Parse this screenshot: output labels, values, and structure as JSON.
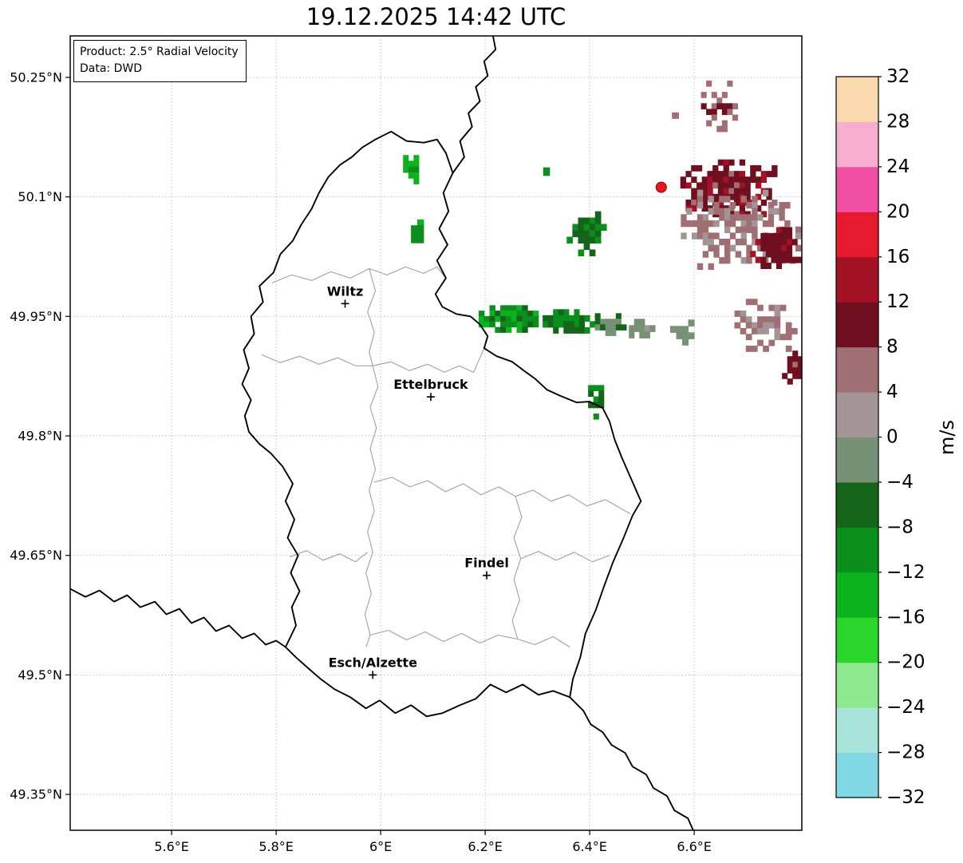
{
  "title": "19.12.2025 14:42 UTC",
  "info_box": {
    "product": "Product: 2.5° Radial Velocity",
    "source": "Data: DWD"
  },
  "axes": {
    "lon_range": [
      5.406,
      6.806
    ],
    "lat_range": [
      49.305,
      50.302
    ],
    "lon_ticks": [
      {
        "value": 5.6,
        "label": "5.6°E"
      },
      {
        "value": 5.8,
        "label": "5.8°E"
      },
      {
        "value": 6.0,
        "label": "6°E"
      },
      {
        "value": 6.2,
        "label": "6.2°E"
      },
      {
        "value": 6.4,
        "label": "6.4°E"
      },
      {
        "value": 6.6,
        "label": "6.6°E"
      }
    ],
    "lat_ticks": [
      {
        "value": 50.25,
        "label": "50.25°N"
      },
      {
        "value": 50.1,
        "label": "50.1°N"
      },
      {
        "value": 49.95,
        "label": "49.95°N"
      },
      {
        "value": 49.8,
        "label": "49.8°N"
      },
      {
        "value": 49.65,
        "label": "49.65°N"
      },
      {
        "value": 49.5,
        "label": "49.5°N"
      },
      {
        "value": 49.35,
        "label": "49.35°N"
      }
    ],
    "grid_color": "#b9b9b9"
  },
  "colorbar": {
    "unit": "m/s",
    "vmin": -32,
    "vmax": 32,
    "step": 4,
    "tick_values": [
      32,
      28,
      24,
      20,
      16,
      12,
      8,
      4,
      0,
      -4,
      -8,
      -12,
      -16,
      -20,
      -24,
      -28,
      -32
    ],
    "tick_labels": [
      "32",
      "28",
      "24",
      "20",
      "16",
      "12",
      "8",
      "4",
      "0",
      "−4",
      "−8",
      "−12",
      "−16",
      "−20",
      "−24",
      "−28",
      "−32"
    ],
    "colors_low_to_high": [
      "#7fd8e3",
      "#a8e4da",
      "#8de98d",
      "#2bd62b",
      "#0cb31f",
      "#0a8f1d",
      "#14641a",
      "#779176",
      "#a39597",
      "#9f6f74",
      "#6f0f1f",
      "#a31225",
      "#e61a2c",
      "#f04fa3",
      "#f7adcd",
      "#fbd9ae"
    ]
  },
  "map": {
    "cities": [
      {
        "name": "Wiltz",
        "lon": 5.932,
        "lat": 49.966
      },
      {
        "name": "Ettelbruck",
        "lon": 6.096,
        "lat": 49.849
      },
      {
        "name": "Findel",
        "lon": 6.203,
        "lat": 49.625
      },
      {
        "name": "Esch/Alzette",
        "lon": 5.985,
        "lat": 49.5
      }
    ],
    "radar_site": {
      "lon": 6.537,
      "lat": 50.112,
      "color": "#e31a1c"
    },
    "borders": {
      "country": [
        [
          6.02,
          50.182
        ],
        [
          6.05,
          50.17
        ],
        [
          6.083,
          50.168
        ],
        [
          6.108,
          50.172
        ],
        [
          6.125,
          50.155
        ],
        [
          6.138,
          50.13
        ],
        [
          6.12,
          50.105
        ],
        [
          6.13,
          50.082
        ],
        [
          6.112,
          50.06
        ],
        [
          6.128,
          50.04
        ],
        [
          6.108,
          50.02
        ],
        [
          6.125,
          49.998
        ],
        [
          6.105,
          49.978
        ],
        [
          6.118,
          49.962
        ],
        [
          6.145,
          49.953
        ],
        [
          6.172,
          49.95
        ],
        [
          6.19,
          49.94
        ],
        [
          6.205,
          49.925
        ],
        [
          6.198,
          49.91
        ],
        [
          6.222,
          49.9
        ],
        [
          6.252,
          49.893
        ],
        [
          6.278,
          49.88
        ],
        [
          6.295,
          49.872
        ],
        [
          6.318,
          49.858
        ],
        [
          6.345,
          49.85
        ],
        [
          6.375,
          49.842
        ],
        [
          6.4,
          49.843
        ],
        [
          6.425,
          49.835
        ],
        [
          6.438,
          49.818
        ],
        [
          6.448,
          49.795
        ],
        [
          6.462,
          49.772
        ],
        [
          6.478,
          49.748
        ],
        [
          6.498,
          49.718
        ],
        [
          6.482,
          49.7
        ],
        [
          6.465,
          49.672
        ],
        [
          6.445,
          49.642
        ],
        [
          6.428,
          49.612
        ],
        [
          6.412,
          49.582
        ],
        [
          6.392,
          49.552
        ],
        [
          6.382,
          49.522
        ],
        [
          6.368,
          49.495
        ],
        [
          6.362,
          49.472
        ],
        [
          6.33,
          49.48
        ],
        [
          6.302,
          49.475
        ],
        [
          6.272,
          49.488
        ],
        [
          6.24,
          49.478
        ],
        [
          6.21,
          49.488
        ],
        [
          6.182,
          49.47
        ],
        [
          6.152,
          49.462
        ],
        [
          6.118,
          49.452
        ],
        [
          6.088,
          49.448
        ],
        [
          6.058,
          49.462
        ],
        [
          6.028,
          49.452
        ],
        [
          5.998,
          49.468
        ],
        [
          5.972,
          49.458
        ],
        [
          5.942,
          49.472
        ],
        [
          5.912,
          49.482
        ],
        [
          5.885,
          49.495
        ],
        [
          5.862,
          49.508
        ],
        [
          5.838,
          49.522
        ],
        [
          5.818,
          49.535
        ],
        [
          5.838,
          49.562
        ],
        [
          5.83,
          49.585
        ],
        [
          5.845,
          49.605
        ],
        [
          5.828,
          49.628
        ],
        [
          5.842,
          49.65
        ],
        [
          5.822,
          49.672
        ],
        [
          5.835,
          49.695
        ],
        [
          5.818,
          49.718
        ],
        [
          5.832,
          49.74
        ],
        [
          5.812,
          49.762
        ],
        [
          5.79,
          49.778
        ],
        [
          5.768,
          49.79
        ],
        [
          5.748,
          49.805
        ],
        [
          5.74,
          49.825
        ],
        [
          5.752,
          49.845
        ],
        [
          5.735,
          49.865
        ],
        [
          5.748,
          49.885
        ],
        [
          5.738,
          49.908
        ],
        [
          5.758,
          49.928
        ],
        [
          5.752,
          49.95
        ],
        [
          5.775,
          49.968
        ],
        [
          5.768,
          49.988
        ],
        [
          5.795,
          50.005
        ],
        [
          5.808,
          50.028
        ],
        [
          5.832,
          50.045
        ],
        [
          5.848,
          50.065
        ],
        [
          5.868,
          50.085
        ],
        [
          5.882,
          50.105
        ],
        [
          5.9,
          50.125
        ],
        [
          5.922,
          50.14
        ],
        [
          5.945,
          50.15
        ],
        [
          5.965,
          50.162
        ],
        [
          5.99,
          50.172
        ],
        [
          6.02,
          50.182
        ]
      ],
      "belgium_germany": [
        [
          6.138,
          50.13
        ],
        [
          6.16,
          50.15
        ],
        [
          6.152,
          50.17
        ],
        [
          6.175,
          50.188
        ],
        [
          6.168,
          50.205
        ],
        [
          6.19,
          50.22
        ],
        [
          6.182,
          50.238
        ],
        [
          6.205,
          50.252
        ],
        [
          6.198,
          50.27
        ],
        [
          6.22,
          50.285
        ],
        [
          6.215,
          50.302
        ],
        [
          6.235,
          50.315
        ]
      ],
      "france_germany": [
        [
          6.362,
          49.472
        ],
        [
          6.388,
          49.455
        ],
        [
          6.402,
          49.438
        ],
        [
          6.425,
          49.428
        ],
        [
          6.442,
          49.412
        ],
        [
          6.468,
          49.402
        ],
        [
          6.482,
          49.385
        ],
        [
          6.508,
          49.375
        ],
        [
          6.522,
          49.358
        ],
        [
          6.548,
          49.348
        ],
        [
          6.562,
          49.33
        ],
        [
          6.588,
          49.32
        ],
        [
          6.6,
          49.302
        ],
        [
          6.615,
          49.292
        ]
      ],
      "france_belgium": [
        [
          5.406,
          49.608
        ],
        [
          5.435,
          49.598
        ],
        [
          5.462,
          49.606
        ],
        [
          5.49,
          49.592
        ],
        [
          5.515,
          49.6
        ],
        [
          5.54,
          49.585
        ],
        [
          5.568,
          49.592
        ],
        [
          5.59,
          49.576
        ],
        [
          5.615,
          49.583
        ],
        [
          5.638,
          49.565
        ],
        [
          5.662,
          49.572
        ],
        [
          5.685,
          49.555
        ],
        [
          5.71,
          49.562
        ],
        [
          5.735,
          49.546
        ],
        [
          5.758,
          49.552
        ],
        [
          5.78,
          49.538
        ],
        [
          5.8,
          49.543
        ],
        [
          5.818,
          49.535
        ]
      ]
    },
    "canton_lines": [
      [
        [
          5.792,
          49.992
        ],
        [
          5.83,
          50.002
        ],
        [
          5.868,
          49.995
        ],
        [
          5.905,
          50.006
        ],
        [
          5.942,
          49.998
        ],
        [
          5.978,
          50.01
        ],
        [
          6.012,
          50.002
        ],
        [
          6.048,
          50.012
        ],
        [
          6.082,
          50.004
        ],
        [
          6.108,
          50.012
        ],
        [
          6.125,
          49.998
        ]
      ],
      [
        [
          5.978,
          50.01
        ],
        [
          5.99,
          49.982
        ],
        [
          5.975,
          49.956
        ],
        [
          5.988,
          49.93
        ],
        [
          5.978,
          49.905
        ],
        [
          5.985,
          49.888
        ]
      ],
      [
        [
          5.772,
          49.902
        ],
        [
          5.808,
          49.892
        ],
        [
          5.845,
          49.9
        ],
        [
          5.882,
          49.89
        ],
        [
          5.918,
          49.898
        ],
        [
          5.952,
          49.888
        ],
        [
          5.985,
          49.888
        ],
        [
          6.02,
          49.893
        ],
        [
          6.055,
          49.882
        ],
        [
          6.09,
          49.89
        ],
        [
          6.122,
          49.88
        ],
        [
          6.15,
          49.888
        ],
        [
          6.178,
          49.88
        ],
        [
          6.198,
          49.91
        ]
      ],
      [
        [
          5.985,
          49.888
        ],
        [
          5.995,
          49.862
        ],
        [
          5.98,
          49.836
        ],
        [
          5.992,
          49.81
        ],
        [
          5.98,
          49.784
        ],
        [
          5.99,
          49.758
        ],
        [
          5.978,
          49.732
        ],
        [
          5.988,
          49.706
        ],
        [
          5.975,
          49.68
        ],
        [
          5.985,
          49.654
        ],
        [
          5.972,
          49.628
        ],
        [
          5.982,
          49.602
        ],
        [
          5.97,
          49.576
        ],
        [
          5.98,
          49.55
        ],
        [
          5.972,
          49.535
        ]
      ],
      [
        [
          5.826,
          49.648
        ],
        [
          5.858,
          49.656
        ],
        [
          5.89,
          49.644
        ],
        [
          5.922,
          49.652
        ],
        [
          5.952,
          49.642
        ],
        [
          5.975,
          49.654
        ]
      ],
      [
        [
          5.988,
          49.742
        ],
        [
          6.022,
          49.748
        ],
        [
          6.056,
          49.736
        ],
        [
          6.09,
          49.744
        ],
        [
          6.124,
          49.73
        ],
        [
          6.158,
          49.74
        ],
        [
          6.192,
          49.726
        ],
        [
          6.226,
          49.736
        ],
        [
          6.258,
          49.724
        ],
        [
          6.292,
          49.732
        ],
        [
          6.326,
          49.718
        ],
        [
          6.36,
          49.726
        ],
        [
          6.395,
          49.712
        ],
        [
          6.43,
          49.72
        ],
        [
          6.478,
          49.702
        ]
      ],
      [
        [
          6.258,
          49.724
        ],
        [
          6.27,
          49.698
        ],
        [
          6.255,
          49.672
        ],
        [
          6.268,
          49.646
        ],
        [
          6.255,
          49.62
        ],
        [
          6.266,
          49.594
        ],
        [
          6.252,
          49.568
        ],
        [
          6.262,
          49.545
        ]
      ],
      [
        [
          5.98,
          49.55
        ],
        [
          6.015,
          49.556
        ],
        [
          6.05,
          49.544
        ],
        [
          6.085,
          49.554
        ],
        [
          6.12,
          49.542
        ],
        [
          6.155,
          49.552
        ],
        [
          6.19,
          49.54
        ],
        [
          6.225,
          49.55
        ],
        [
          6.262,
          49.545
        ],
        [
          6.295,
          49.538
        ],
        [
          6.33,
          49.548
        ],
        [
          6.362,
          49.535
        ]
      ],
      [
        [
          6.268,
          49.646
        ],
        [
          6.302,
          49.655
        ],
        [
          6.336,
          49.644
        ],
        [
          6.37,
          49.654
        ],
        [
          6.405,
          49.642
        ],
        [
          6.438,
          49.65
        ]
      ]
    ],
    "echo_clusters": [
      {
        "name": "main-band-west",
        "lon": 6.255,
        "lat": 49.947,
        "w": 0.135,
        "h": 0.034,
        "level": -11,
        "spread": 7,
        "density": 0.95
      },
      {
        "name": "main-band-mid",
        "lon": 6.36,
        "lat": 49.944,
        "w": 0.1,
        "h": 0.03,
        "level": -9,
        "spread": 6,
        "density": 0.95
      },
      {
        "name": "main-band-east",
        "lon": 6.445,
        "lat": 49.94,
        "w": 0.07,
        "h": 0.028,
        "level": -5,
        "spread": 4,
        "density": 0.9
      },
      {
        "name": "band-gray-tail",
        "lon": 6.5,
        "lat": 49.935,
        "w": 0.05,
        "h": 0.024,
        "level": -1,
        "spread": 2,
        "density": 0.8
      },
      {
        "name": "ne-green-blob",
        "lon": 6.394,
        "lat": 50.054,
        "w": 0.076,
        "h": 0.056,
        "level": -8,
        "spread": 5,
        "density": 0.75
      },
      {
        "name": "north-green-streak",
        "lon": 6.058,
        "lat": 50.138,
        "w": 0.03,
        "h": 0.058,
        "level": -14,
        "spread": 5,
        "density": 0.8
      },
      {
        "name": "north-green-streak2",
        "lon": 6.07,
        "lat": 50.057,
        "w": 0.024,
        "h": 0.044,
        "level": -12,
        "spread": 4,
        "density": 0.8
      },
      {
        "name": "east-small-green",
        "lon": 6.412,
        "lat": 49.846,
        "w": 0.03,
        "h": 0.05,
        "level": -9,
        "spread": 4,
        "density": 0.65
      },
      {
        "name": "topright-darkred",
        "lon": 6.666,
        "lat": 50.111,
        "w": 0.185,
        "h": 0.072,
        "level": 10,
        "spread": 6,
        "density": 0.8
      },
      {
        "name": "top-maroon-bits",
        "lon": 6.648,
        "lat": 50.214,
        "w": 0.07,
        "h": 0.064,
        "level": 7,
        "spread": 5,
        "density": 0.4
      },
      {
        "name": "right-rosy-field",
        "lon": 6.684,
        "lat": 50.059,
        "w": 0.24,
        "h": 0.1,
        "level": 4,
        "spread": 4,
        "density": 0.55
      },
      {
        "name": "rightedge-darkred",
        "lon": 6.757,
        "lat": 50.036,
        "w": 0.1,
        "h": 0.052,
        "level": 10,
        "spread": 4,
        "density": 0.75
      },
      {
        "name": "lower-rosy-field",
        "lon": 6.737,
        "lat": 49.939,
        "w": 0.12,
        "h": 0.066,
        "level": 4,
        "spread": 3,
        "density": 0.55
      },
      {
        "name": "gray-green-patch",
        "lon": 6.577,
        "lat": 49.93,
        "w": 0.046,
        "h": 0.032,
        "level": -2,
        "spread": 2,
        "density": 0.7
      },
      {
        "name": "rightedge-red-low",
        "lon": 6.788,
        "lat": 49.886,
        "w": 0.04,
        "h": 0.042,
        "level": 9,
        "spread": 4,
        "density": 0.7
      },
      {
        "name": "tiny-green-dot",
        "lon": 6.317,
        "lat": 50.132,
        "w": 0.012,
        "h": 0.01,
        "level": -10,
        "spread": 1,
        "density": 1.0
      },
      {
        "name": "small-maroon-bit",
        "lon": 6.57,
        "lat": 50.206,
        "w": 0.025,
        "h": 0.03,
        "level": 5,
        "spread": 3,
        "density": 0.45
      }
    ]
  }
}
